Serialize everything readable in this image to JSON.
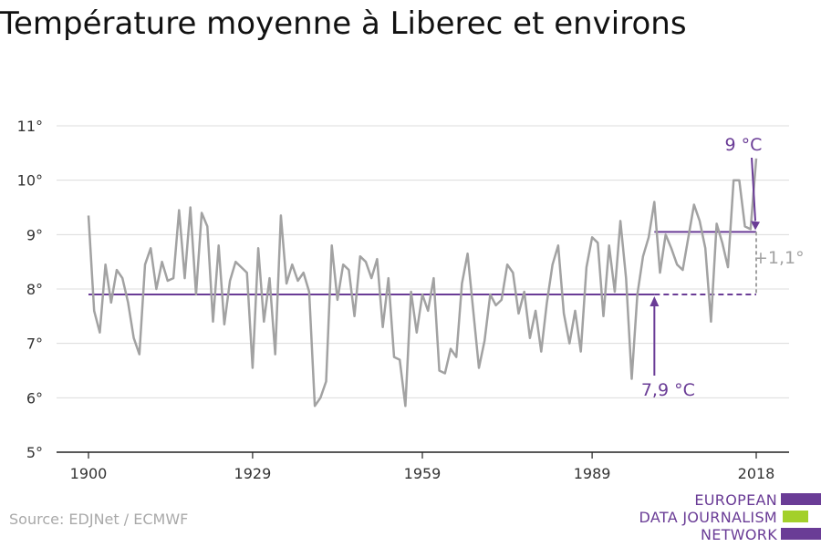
{
  "title": "Température moyenne à Liberec et environs",
  "source": "Source: EDJNet / ECMWF",
  "logo": {
    "lines": [
      "EUROPEAN",
      "DATA JOURNALISM",
      "NETWORK"
    ],
    "colors": [
      "#6a3c96",
      "#a3d02a",
      "#6a3c96"
    ]
  },
  "colors": {
    "series": "#a2a2a2",
    "accent": "#6a3c96",
    "grid": "#dcdcdc",
    "diff": "#a2a2a2"
  },
  "annotations": {
    "baseline_label": "7,9 °C",
    "recent_label": "9 °C",
    "diff_label": "+1,1°"
  },
  "chart_data": {
    "type": "line",
    "title": "Température moyenne à Liberec et environs",
    "xlabel": "",
    "ylabel": "",
    "xlim": [
      1900,
      2018
    ],
    "ylim": [
      5,
      11
    ],
    "x_ticks": [
      1900,
      1929,
      1959,
      1989,
      2018
    ],
    "y_ticks": [
      {
        "value": 5,
        "label": "5°"
      },
      {
        "value": 6,
        "label": "6°"
      },
      {
        "value": 7,
        "label": "7°"
      },
      {
        "value": 8,
        "label": "8°"
      },
      {
        "value": 9,
        "label": "9°"
      },
      {
        "value": 10,
        "label": "10°"
      },
      {
        "value": 11,
        "label": "11°"
      }
    ],
    "grid": true,
    "series": [
      {
        "x": [
          1900,
          1901,
          1902,
          1903,
          1904,
          1905,
          1906,
          1907,
          1908,
          1909,
          1910,
          1911,
          1912,
          1913,
          1914,
          1915,
          1916,
          1917,
          1918,
          1919,
          1920,
          1921,
          1922,
          1923,
          1924,
          1925,
          1926,
          1927,
          1928,
          1929,
          1930,
          1931,
          1932,
          1933,
          1934,
          1935,
          1936,
          1937,
          1938,
          1939,
          1940,
          1941,
          1942,
          1943,
          1944,
          1945,
          1946,
          1947,
          1948,
          1949,
          1950,
          1951,
          1952,
          1953,
          1954,
          1955,
          1956,
          1957,
          1958,
          1959,
          1960,
          1961,
          1962,
          1963,
          1964,
          1965,
          1966,
          1967,
          1968,
          1969,
          1970,
          1971,
          1972,
          1973,
          1974,
          1975,
          1976,
          1977,
          1978,
          1979,
          1980,
          1981,
          1982,
          1983,
          1984,
          1985,
          1986,
          1987,
          1988,
          1989,
          1990,
          1991,
          1992,
          1993,
          1994,
          1995,
          1996,
          1997,
          1998,
          1999,
          2000,
          2001,
          2002,
          2003,
          2004,
          2005,
          2006,
          2007,
          2008,
          2009,
          2010,
          2011,
          2012,
          2013,
          2014,
          2015,
          2016,
          2017,
          2018
        ],
        "values": [
          9.35,
          7.6,
          7.2,
          8.45,
          7.75,
          8.35,
          8.2,
          7.75,
          7.1,
          6.8,
          8.45,
          8.75,
          8.0,
          8.5,
          8.15,
          8.2,
          9.45,
          8.2,
          9.5,
          7.9,
          9.4,
          9.15,
          7.4,
          8.8,
          7.35,
          8.15,
          8.5,
          8.4,
          8.3,
          6.55,
          8.75,
          7.4,
          8.2,
          6.8,
          9.35,
          8.1,
          8.45,
          8.15,
          8.3,
          7.95,
          5.85,
          6.0,
          6.3,
          8.8,
          7.8,
          8.45,
          8.35,
          7.5,
          8.6,
          8.5,
          8.2,
          8.55,
          7.3,
          8.2,
          6.75,
          6.7,
          5.85,
          7.95,
          7.2,
          7.9,
          7.6,
          8.2,
          6.5,
          6.45,
          6.9,
          6.75,
          8.1,
          8.65,
          7.6,
          6.55,
          7.05,
          7.9,
          7.7,
          7.8,
          8.45,
          8.3,
          7.55,
          7.95,
          7.1,
          7.6,
          6.85,
          7.75,
          8.45,
          8.8,
          7.55,
          7.0,
          7.6,
          6.85,
          8.4,
          8.95,
          8.85,
          7.5,
          8.8,
          7.95,
          9.25,
          8.2,
          6.35,
          7.9,
          8.6,
          8.95,
          9.6,
          8.3,
          9.0,
          8.75,
          8.45,
          8.35,
          8.95,
          9.55,
          9.25,
          8.75,
          7.4,
          9.2,
          8.85,
          8.4,
          10.0,
          10.0,
          9.15,
          9.1,
          10.4
        ]
      }
    ],
    "reference_lines": [
      {
        "label": "7,9 °C",
        "value": 7.9,
        "x_start": 1900,
        "x_solid_end": 2000,
        "x_end": 2018
      },
      {
        "label": "9 °C",
        "value": 9.05,
        "x_start": 2000,
        "x_end": 2018
      }
    ]
  }
}
